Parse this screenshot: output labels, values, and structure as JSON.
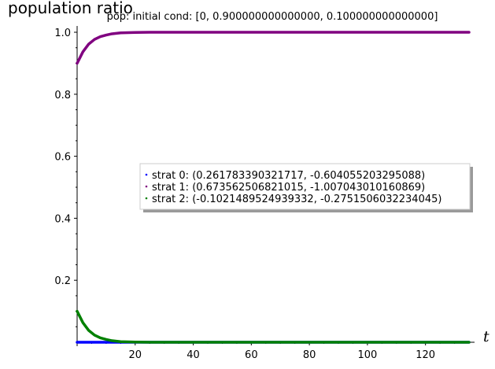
{
  "chart_data": {
    "type": "line",
    "title": "pop: initial cond: [0, 0.900000000000000, 0.100000000000000]",
    "ylabel": "population ratio",
    "xlabel": "t",
    "xlim": [
      0,
      135
    ],
    "ylim": [
      0,
      1.0
    ],
    "x_ticks": [
      20,
      40,
      60,
      80,
      100,
      120
    ],
    "y_ticks": [
      0.2,
      0.4,
      0.6,
      0.8,
      1.0
    ],
    "y_tick_labels": [
      "0.2",
      "0.4",
      "0.6",
      "0.8",
      "1.0"
    ],
    "grid": false,
    "legend_position": "center-right",
    "series": [
      {
        "name": "strat 0: (0.261783390321717, -0.604055203295088)",
        "color": "#0000ff",
        "x": [
          0,
          135
        ],
        "y": [
          0,
          0
        ]
      },
      {
        "name": "strat 1: (0.673562506821015, -1.007043010160869)",
        "color": "#800080",
        "x": [
          0,
          2,
          4,
          6,
          8,
          10,
          12,
          15,
          20,
          25,
          30,
          40,
          60,
          80,
          100,
          120,
          135
        ],
        "y": [
          0.9,
          0.937,
          0.962,
          0.977,
          0.986,
          0.991,
          0.995,
          0.998,
          0.9995,
          1.0,
          1.0,
          1.0,
          1.0,
          1.0,
          1.0,
          1.0,
          1.0
        ]
      },
      {
        "name": "strat 2: (-0.1021489524939332, -0.2751506032234045)",
        "color": "#008000",
        "x": [
          0,
          2,
          4,
          6,
          8,
          10,
          12,
          15,
          20,
          25,
          30,
          40,
          60,
          80,
          100,
          120,
          135
        ],
        "y": [
          0.1,
          0.063,
          0.038,
          0.023,
          0.014,
          0.009,
          0.005,
          0.002,
          0.0005,
          0.0,
          0.0,
          0.0,
          0.0,
          0.0,
          0.0,
          0.0,
          0.0
        ]
      }
    ]
  }
}
